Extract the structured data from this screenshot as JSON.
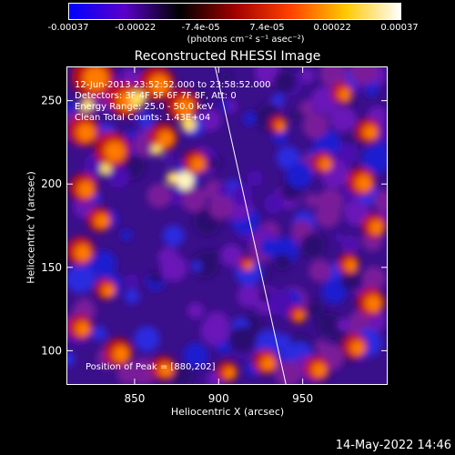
{
  "colorbar": {
    "tick_labels": [
      "-0.00037",
      "-0.00022",
      "-7.4e-05",
      "7.4e-05",
      "0.00022",
      "0.00037"
    ],
    "tick_values": [
      -0.00037,
      -0.00022,
      -7.4e-05,
      7.4e-05,
      0.00022,
      0.00037
    ],
    "units": "(photons cm⁻² s⁻¹ asec⁻²)",
    "colors": [
      "#0000ff",
      "#5a00c8",
      "#000000",
      "#a00000",
      "#ff4000",
      "#ffc800",
      "#ffffff"
    ]
  },
  "chart_data": {
    "type": "heatmap",
    "title": "Reconstructed RHESSI Image",
    "xlabel": "Heliocentric X (arcsec)",
    "ylabel": "Heliocentric Y (arcsec)",
    "xlim": [
      810,
      1000
    ],
    "ylim": [
      80,
      270
    ],
    "xticks": [
      850,
      900,
      950
    ],
    "yticks": [
      100,
      150,
      200,
      250
    ],
    "peak": [
      880,
      202
    ],
    "limb_line": [
      [
        898,
        270
      ],
      [
        940,
        80
      ]
    ]
  },
  "info": {
    "time_range": "12-Jun-2013 23:52:52.000 to 23:58:52.000",
    "detectors": "Detectors: 3F 4F 5F 6F 7F 8F, Att: 0",
    "energy_range": "Energy Range: 25.0 - 50.0 keV",
    "method": "Clean       Total Counts: 1.43E+04",
    "peak_position": "Position of Peak = [880,202]"
  },
  "footer": {
    "date": "14-May-2022 14:46"
  }
}
